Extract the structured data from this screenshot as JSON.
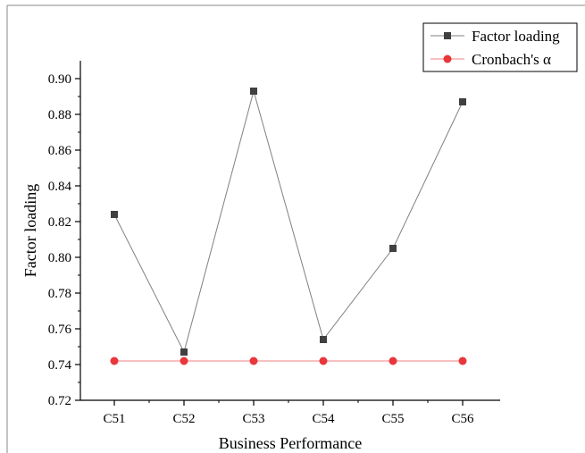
{
  "chart_data": {
    "type": "line",
    "title": "",
    "xlabel": "Business Performance",
    "ylabel": "Factor loading",
    "categories": [
      "C51",
      "C52",
      "C53",
      "C54",
      "C55",
      "C56"
    ],
    "ylim": [
      0.72,
      0.9
    ],
    "y_ticks": [
      "0.72",
      "0.74",
      "0.76",
      "0.78",
      "0.80",
      "0.82",
      "0.84",
      "0.86",
      "0.88",
      "0.90"
    ],
    "grid": false,
    "legend_position": "top-right",
    "series": [
      {
        "name": "Factor loading",
        "marker": "square",
        "color": "#404040",
        "line_color": "#808080",
        "values": [
          0.824,
          0.747,
          0.893,
          0.754,
          0.805,
          0.887
        ]
      },
      {
        "name": "Cronbach's α",
        "marker": "circle",
        "color": "#e8363a",
        "line_color": "#f08080",
        "values": [
          0.742,
          0.742,
          0.742,
          0.742,
          0.742,
          0.742
        ]
      }
    ]
  }
}
